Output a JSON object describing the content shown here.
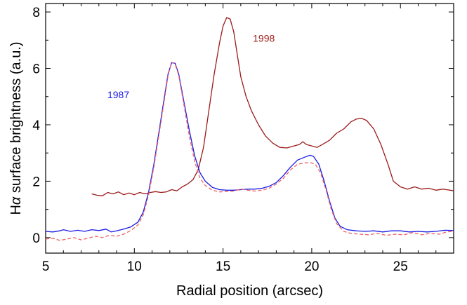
{
  "chart_data": {
    "type": "line",
    "title": "",
    "xlabel": "Radial position (arcsec)",
    "ylabel_prefix": "H",
    "ylabel_greek": "α",
    "ylabel_suffix": " surface brightness (a.u.)",
    "xlim": [
      5,
      28
    ],
    "ylim": [
      -0.55,
      8.3
    ],
    "x_ticks": [
      5,
      10,
      15,
      20,
      25
    ],
    "y_ticks": [
      0,
      2,
      4,
      6,
      8
    ],
    "grid": false,
    "series": [
      {
        "name": "1998",
        "color": "#9b1b1b",
        "style": "solid",
        "points": [
          [
            7.6,
            1.55
          ],
          [
            7.9,
            1.5
          ],
          [
            8.2,
            1.48
          ],
          [
            8.5,
            1.6
          ],
          [
            8.8,
            1.55
          ],
          [
            9.1,
            1.62
          ],
          [
            9.4,
            1.52
          ],
          [
            9.7,
            1.58
          ],
          [
            10.0,
            1.52
          ],
          [
            10.3,
            1.6
          ],
          [
            10.6,
            1.55
          ],
          [
            10.9,
            1.6
          ],
          [
            11.2,
            1.63
          ],
          [
            11.5,
            1.6
          ],
          [
            11.8,
            1.62
          ],
          [
            12.1,
            1.7
          ],
          [
            12.4,
            1.66
          ],
          [
            12.7,
            1.8
          ],
          [
            13.0,
            1.9
          ],
          [
            13.3,
            2.05
          ],
          [
            13.6,
            2.4
          ],
          [
            13.9,
            3.2
          ],
          [
            14.2,
            4.5
          ],
          [
            14.5,
            5.8
          ],
          [
            14.8,
            6.9
          ],
          [
            15.0,
            7.5
          ],
          [
            15.2,
            7.8
          ],
          [
            15.4,
            7.75
          ],
          [
            15.6,
            7.3
          ],
          [
            15.8,
            6.5
          ],
          [
            16.0,
            5.7
          ],
          [
            16.3,
            5.0
          ],
          [
            16.6,
            4.5
          ],
          [
            17.0,
            4.0
          ],
          [
            17.4,
            3.6
          ],
          [
            17.8,
            3.35
          ],
          [
            18.2,
            3.2
          ],
          [
            18.6,
            3.18
          ],
          [
            19.0,
            3.25
          ],
          [
            19.3,
            3.3
          ],
          [
            19.5,
            3.4
          ],
          [
            19.7,
            3.3
          ],
          [
            20.0,
            3.25
          ],
          [
            20.3,
            3.2
          ],
          [
            20.6,
            3.3
          ],
          [
            21.0,
            3.45
          ],
          [
            21.4,
            3.7
          ],
          [
            21.8,
            3.85
          ],
          [
            22.2,
            4.1
          ],
          [
            22.5,
            4.2
          ],
          [
            22.8,
            4.23
          ],
          [
            23.1,
            4.15
          ],
          [
            23.5,
            3.85
          ],
          [
            23.9,
            3.3
          ],
          [
            24.3,
            2.6
          ],
          [
            24.6,
            2.0
          ],
          [
            25.0,
            1.8
          ],
          [
            25.4,
            1.72
          ],
          [
            25.8,
            1.8
          ],
          [
            26.2,
            1.72
          ],
          [
            26.6,
            1.75
          ],
          [
            27.0,
            1.68
          ],
          [
            27.4,
            1.72
          ],
          [
            27.8,
            1.68
          ],
          [
            28.0,
            1.66
          ]
        ]
      },
      {
        "name": "1987",
        "color": "#1a1ae6",
        "style": "solid",
        "points": [
          [
            5.0,
            0.22
          ],
          [
            5.4,
            0.2
          ],
          [
            5.8,
            0.24
          ],
          [
            6.0,
            0.28
          ],
          [
            6.4,
            0.22
          ],
          [
            6.8,
            0.26
          ],
          [
            7.2,
            0.22
          ],
          [
            7.6,
            0.28
          ],
          [
            8.0,
            0.25
          ],
          [
            8.4,
            0.3
          ],
          [
            8.7,
            0.2
          ],
          [
            9.0,
            0.24
          ],
          [
            9.4,
            0.3
          ],
          [
            9.8,
            0.38
          ],
          [
            10.2,
            0.55
          ],
          [
            10.5,
            0.9
          ],
          [
            10.8,
            1.6
          ],
          [
            11.1,
            2.6
          ],
          [
            11.4,
            3.8
          ],
          [
            11.7,
            5.0
          ],
          [
            11.9,
            5.8
          ],
          [
            12.1,
            6.2
          ],
          [
            12.3,
            6.18
          ],
          [
            12.5,
            5.8
          ],
          [
            12.8,
            4.8
          ],
          [
            13.1,
            3.8
          ],
          [
            13.4,
            2.9
          ],
          [
            13.7,
            2.3
          ],
          [
            14.0,
            2.0
          ],
          [
            14.4,
            1.78
          ],
          [
            14.8,
            1.7
          ],
          [
            15.2,
            1.68
          ],
          [
            15.6,
            1.68
          ],
          [
            16.0,
            1.7
          ],
          [
            16.4,
            1.72
          ],
          [
            16.8,
            1.72
          ],
          [
            17.2,
            1.75
          ],
          [
            17.6,
            1.82
          ],
          [
            18.0,
            1.95
          ],
          [
            18.4,
            2.2
          ],
          [
            18.8,
            2.5
          ],
          [
            19.2,
            2.75
          ],
          [
            19.6,
            2.85
          ],
          [
            19.9,
            2.92
          ],
          [
            20.1,
            2.88
          ],
          [
            20.4,
            2.6
          ],
          [
            20.7,
            2.0
          ],
          [
            21.0,
            1.3
          ],
          [
            21.3,
            0.7
          ],
          [
            21.6,
            0.4
          ],
          [
            22.0,
            0.28
          ],
          [
            22.5,
            0.24
          ],
          [
            23.0,
            0.22
          ],
          [
            23.5,
            0.24
          ],
          [
            24.0,
            0.2
          ],
          [
            24.5,
            0.24
          ],
          [
            25.0,
            0.24
          ],
          [
            25.5,
            0.2
          ],
          [
            26.0,
            0.22
          ],
          [
            26.5,
            0.2
          ],
          [
            27.0,
            0.22
          ],
          [
            27.5,
            0.26
          ],
          [
            28.0,
            0.25
          ]
        ]
      },
      {
        "name": "",
        "color": "#f06060",
        "style": "dashed",
        "points": [
          [
            5.0,
            -0.05
          ],
          [
            5.4,
            -0.02
          ],
          [
            5.8,
            -0.1
          ],
          [
            6.2,
            -0.05
          ],
          [
            6.6,
            0.0
          ],
          [
            7.0,
            -0.08
          ],
          [
            7.4,
            -0.02
          ],
          [
            7.8,
            0.05
          ],
          [
            8.2,
            0.0
          ],
          [
            8.6,
            0.08
          ],
          [
            9.0,
            0.05
          ],
          [
            9.4,
            0.12
          ],
          [
            9.8,
            0.25
          ],
          [
            10.2,
            0.45
          ],
          [
            10.5,
            0.8
          ],
          [
            10.8,
            1.5
          ],
          [
            11.1,
            2.5
          ],
          [
            11.4,
            3.7
          ],
          [
            11.7,
            4.9
          ],
          [
            11.9,
            5.75
          ],
          [
            12.1,
            6.22
          ],
          [
            12.3,
            6.15
          ],
          [
            12.5,
            5.75
          ],
          [
            12.8,
            4.7
          ],
          [
            13.1,
            3.6
          ],
          [
            13.4,
            2.7
          ],
          [
            13.7,
            2.1
          ],
          [
            14.0,
            1.85
          ],
          [
            14.4,
            1.68
          ],
          [
            14.8,
            1.62
          ],
          [
            15.2,
            1.63
          ],
          [
            15.6,
            1.65
          ],
          [
            16.0,
            1.72
          ],
          [
            16.4,
            1.68
          ],
          [
            16.8,
            1.65
          ],
          [
            17.2,
            1.68
          ],
          [
            17.6,
            1.75
          ],
          [
            18.0,
            1.9
          ],
          [
            18.4,
            2.1
          ],
          [
            18.8,
            2.4
          ],
          [
            19.2,
            2.6
          ],
          [
            19.6,
            2.65
          ],
          [
            19.9,
            2.66
          ],
          [
            20.2,
            2.6
          ],
          [
            20.5,
            2.3
          ],
          [
            20.8,
            1.7
          ],
          [
            21.1,
            1.0
          ],
          [
            21.4,
            0.5
          ],
          [
            21.8,
            0.22
          ],
          [
            22.2,
            0.15
          ],
          [
            22.7,
            0.12
          ],
          [
            23.2,
            0.1
          ],
          [
            23.7,
            0.15
          ],
          [
            24.2,
            0.08
          ],
          [
            24.7,
            0.12
          ],
          [
            25.2,
            0.1
          ],
          [
            25.7,
            0.18
          ],
          [
            26.2,
            0.1
          ],
          [
            26.7,
            0.15
          ],
          [
            27.2,
            0.12
          ],
          [
            27.6,
            0.2
          ],
          [
            28.0,
            0.22
          ]
        ]
      }
    ],
    "annotations": [
      {
        "text": "1998",
        "x": 17.3,
        "y": 6.95,
        "color": "#9b1b1b"
      },
      {
        "text": "1987",
        "x": 9.1,
        "y": 4.95,
        "color": "#1a1ae6"
      }
    ]
  }
}
